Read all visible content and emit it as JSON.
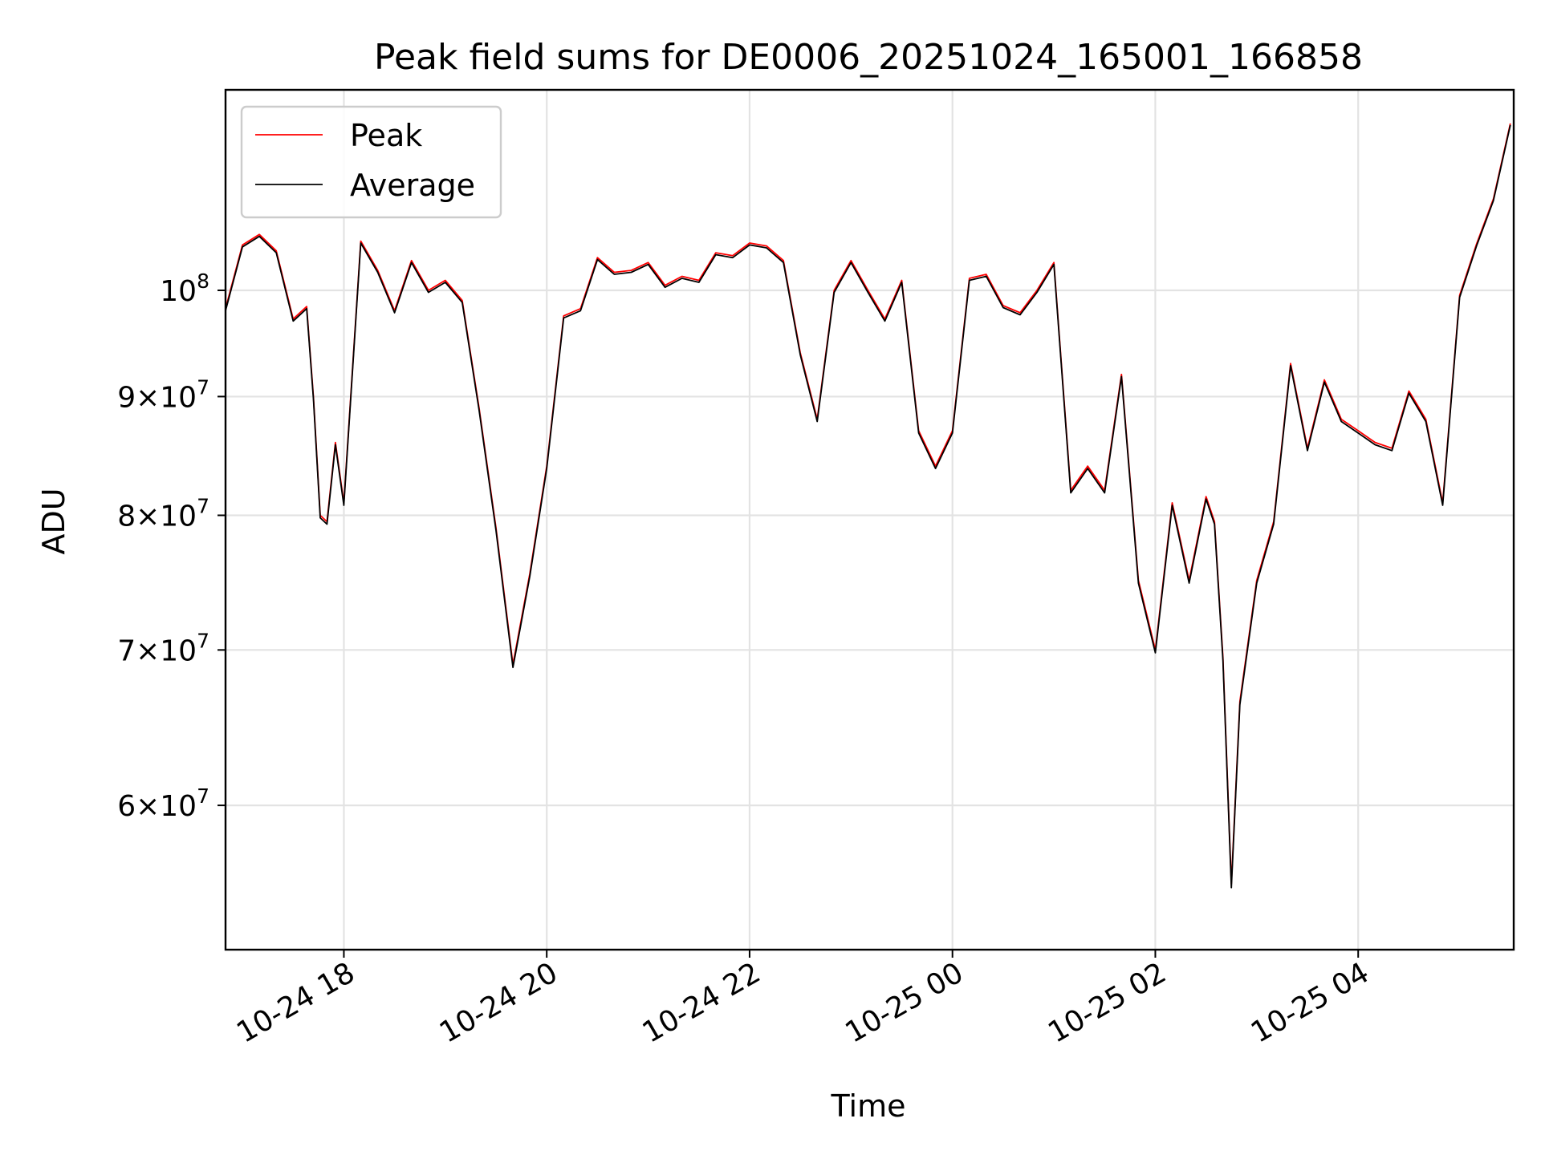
{
  "chart_data": {
    "type": "line",
    "title": "Peak field sums for DE0006_20251024_165001_166858",
    "xlabel": "Time",
    "ylabel": "ADU",
    "yscale": "log",
    "xlim": [
      "2025-10-24 16:50",
      "2025-10-25 05:32"
    ],
    "ylim": [
      52000000,
      122000000
    ],
    "grid": true,
    "legend_position": "top-left",
    "x_ticks": [
      {
        "value": "2025-10-24 18:00",
        "label": "10-24 18"
      },
      {
        "value": "2025-10-24 20:00",
        "label": "10-24 20"
      },
      {
        "value": "2025-10-24 22:00",
        "label": "10-24 22"
      },
      {
        "value": "2025-10-25 00:00",
        "label": "10-25 00"
      },
      {
        "value": "2025-10-25 02:00",
        "label": "10-25 02"
      },
      {
        "value": "2025-10-25 04:00",
        "label": "10-25 04"
      }
    ],
    "y_ticks": [
      {
        "value": 60000000,
        "mantissa": "6",
        "exponent": "7"
      },
      {
        "value": 70000000,
        "mantissa": "7",
        "exponent": "7"
      },
      {
        "value": 80000000,
        "mantissa": "8",
        "exponent": "7"
      },
      {
        "value": 90000000,
        "mantissa": "9",
        "exponent": "7"
      },
      {
        "value": 100000000,
        "mantissa": "",
        "exponent": "8"
      }
    ],
    "series": [
      {
        "name": "Peak",
        "color": "#ff0000",
        "x": [
          "2025-10-24 16:50",
          "2025-10-24 17:00",
          "2025-10-24 17:10",
          "2025-10-24 17:20",
          "2025-10-24 17:30",
          "2025-10-24 17:38",
          "2025-10-24 17:42",
          "2025-10-24 17:46",
          "2025-10-24 17:50",
          "2025-10-24 17:55",
          "2025-10-24 18:00",
          "2025-10-24 18:10",
          "2025-10-24 18:20",
          "2025-10-24 18:30",
          "2025-10-24 18:40",
          "2025-10-24 18:50",
          "2025-10-24 19:00",
          "2025-10-24 19:10",
          "2025-10-24 19:20",
          "2025-10-24 19:30",
          "2025-10-24 19:40",
          "2025-10-24 19:50",
          "2025-10-24 20:00",
          "2025-10-24 20:10",
          "2025-10-24 20:20",
          "2025-10-24 20:30",
          "2025-10-24 20:40",
          "2025-10-24 20:50",
          "2025-10-24 21:00",
          "2025-10-24 21:10",
          "2025-10-24 21:20",
          "2025-10-24 21:30",
          "2025-10-24 21:40",
          "2025-10-24 21:50",
          "2025-10-24 22:00",
          "2025-10-24 22:10",
          "2025-10-24 22:20",
          "2025-10-24 22:30",
          "2025-10-24 22:40",
          "2025-10-24 22:50",
          "2025-10-24 23:00",
          "2025-10-24 23:10",
          "2025-10-24 23:20",
          "2025-10-24 23:30",
          "2025-10-24 23:40",
          "2025-10-24 23:50",
          "2025-10-25 00:00",
          "2025-10-25 00:10",
          "2025-10-25 00:20",
          "2025-10-25 00:30",
          "2025-10-25 00:40",
          "2025-10-25 00:50",
          "2025-10-25 01:00",
          "2025-10-25 01:10",
          "2025-10-25 01:20",
          "2025-10-25 01:30",
          "2025-10-25 01:40",
          "2025-10-25 01:50",
          "2025-10-25 02:00",
          "2025-10-25 02:10",
          "2025-10-25 02:20",
          "2025-10-25 02:30",
          "2025-10-25 02:35",
          "2025-10-25 02:40",
          "2025-10-25 02:45",
          "2025-10-25 02:50",
          "2025-10-25 03:00",
          "2025-10-25 03:10",
          "2025-10-25 03:20",
          "2025-10-25 03:30",
          "2025-10-25 03:40",
          "2025-10-25 03:50",
          "2025-10-25 04:00",
          "2025-10-25 04:10",
          "2025-10-25 04:20",
          "2025-10-25 04:30",
          "2025-10-25 04:40",
          "2025-10-25 04:50",
          "2025-10-25 05:00",
          "2025-10-25 05:10",
          "2025-10-25 05:20",
          "2025-10-25 05:30"
        ],
        "y": [
          98200000,
          104600000,
          105700000,
          104000000,
          97200000,
          98400000,
          90000000,
          80000000,
          79500000,
          86000000,
          81000000,
          105000000,
          102000000,
          98000000,
          103000000,
          100000000,
          101000000,
          99000000,
          89000000,
          79000000,
          69000000,
          75500000,
          84000000,
          97500000,
          98200000,
          103300000,
          101800000,
          102000000,
          102800000,
          100500000,
          101400000,
          101000000,
          103800000,
          103500000,
          104800000,
          104500000,
          103000000,
          94000000,
          88000000,
          100000000,
          103000000,
          100000000,
          97200000,
          101000000,
          87000000,
          84000000,
          87000000,
          101200000,
          101600000,
          98500000,
          97800000,
          100000000,
          102800000,
          82000000,
          84000000,
          82000000,
          92000000,
          75000000,
          70000000,
          81000000,
          75000000,
          81500000,
          79500000,
          69500000,
          55500000,
          66500000,
          75000000,
          79500000,
          93000000,
          85500000,
          91500000,
          88000000,
          87000000,
          86000000,
          85500000,
          90500000,
          88000000,
          81000000,
          99500000,
          104700000,
          109500000,
          118000000
        ]
      },
      {
        "name": "Average",
        "color": "#000000",
        "x": [
          "2025-10-24 16:50",
          "2025-10-24 17:00",
          "2025-10-24 17:10",
          "2025-10-24 17:20",
          "2025-10-24 17:30",
          "2025-10-24 17:38",
          "2025-10-24 17:42",
          "2025-10-24 17:46",
          "2025-10-24 17:50",
          "2025-10-24 17:55",
          "2025-10-24 18:00",
          "2025-10-24 18:10",
          "2025-10-24 18:20",
          "2025-10-24 18:30",
          "2025-10-24 18:40",
          "2025-10-24 18:50",
          "2025-10-24 19:00",
          "2025-10-24 19:10",
          "2025-10-24 19:20",
          "2025-10-24 19:30",
          "2025-10-24 19:40",
          "2025-10-24 19:50",
          "2025-10-24 20:00",
          "2025-10-24 20:10",
          "2025-10-24 20:20",
          "2025-10-24 20:30",
          "2025-10-24 20:40",
          "2025-10-24 20:50",
          "2025-10-24 21:00",
          "2025-10-24 21:10",
          "2025-10-24 21:20",
          "2025-10-24 21:30",
          "2025-10-24 21:40",
          "2025-10-24 21:50",
          "2025-10-24 22:00",
          "2025-10-24 22:10",
          "2025-10-24 22:20",
          "2025-10-24 22:30",
          "2025-10-24 22:40",
          "2025-10-24 22:50",
          "2025-10-24 23:00",
          "2025-10-24 23:10",
          "2025-10-24 23:20",
          "2025-10-24 23:30",
          "2025-10-24 23:40",
          "2025-10-24 23:50",
          "2025-10-25 00:00",
          "2025-10-25 00:10",
          "2025-10-25 00:20",
          "2025-10-25 00:30",
          "2025-10-25 00:40",
          "2025-10-25 00:50",
          "2025-10-25 01:00",
          "2025-10-25 01:10",
          "2025-10-25 01:20",
          "2025-10-25 01:30",
          "2025-10-25 01:40",
          "2025-10-25 01:50",
          "2025-10-25 02:00",
          "2025-10-25 02:10",
          "2025-10-25 02:20",
          "2025-10-25 02:30",
          "2025-10-25 02:35",
          "2025-10-25 02:40",
          "2025-10-25 02:45",
          "2025-10-25 02:50",
          "2025-10-25 03:00",
          "2025-10-25 03:10",
          "2025-10-25 03:20",
          "2025-10-25 03:30",
          "2025-10-25 03:40",
          "2025-10-25 03:50",
          "2025-10-25 04:00",
          "2025-10-25 04:10",
          "2025-10-25 04:20",
          "2025-10-25 04:30",
          "2025-10-25 04:40",
          "2025-10-25 04:50",
          "2025-10-25 05:00",
          "2025-10-25 05:10",
          "2025-10-25 05:20",
          "2025-10-25 05:30"
        ],
        "y": [
          98000000,
          104400000,
          105500000,
          103800000,
          97000000,
          98200000,
          89800000,
          79800000,
          79300000,
          85800000,
          80800000,
          104800000,
          101800000,
          97800000,
          102800000,
          99800000,
          100800000,
          98800000,
          88800000,
          78800000,
          68800000,
          75300000,
          83800000,
          97300000,
          98000000,
          103100000,
          101600000,
          101800000,
          102600000,
          100300000,
          101200000,
          100800000,
          103600000,
          103300000,
          104600000,
          104300000,
          102800000,
          93800000,
          87800000,
          99800000,
          102800000,
          99800000,
          97000000,
          100800000,
          86800000,
          83800000,
          86800000,
          101000000,
          101400000,
          98300000,
          97600000,
          99800000,
          102600000,
          81800000,
          83800000,
          81800000,
          91800000,
          74800000,
          69800000,
          80800000,
          74800000,
          81300000,
          79300000,
          69300000,
          55300000,
          66300000,
          74800000,
          79300000,
          92800000,
          85300000,
          91300000,
          87800000,
          86800000,
          85800000,
          85300000,
          90300000,
          87800000,
          80800000,
          99300000,
          104500000,
          109300000,
          117800000
        ]
      }
    ]
  }
}
